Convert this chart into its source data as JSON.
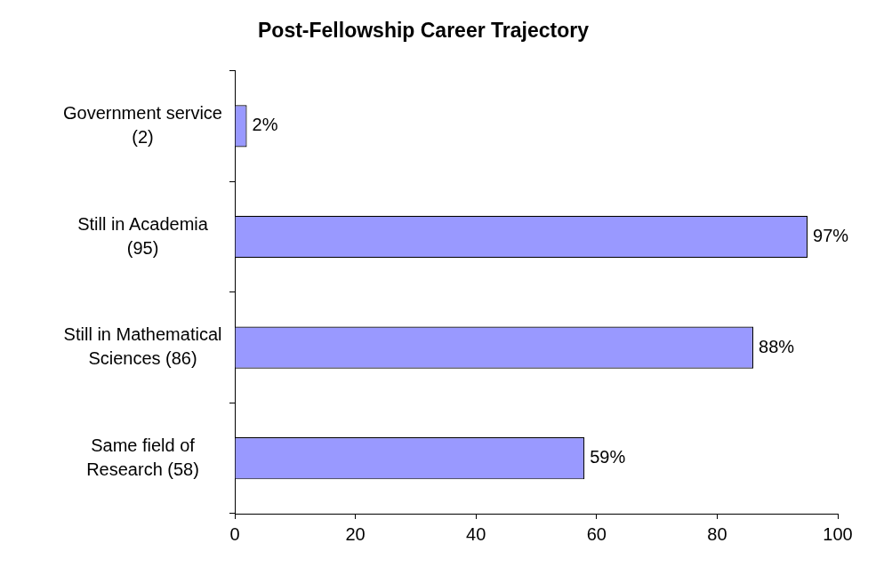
{
  "chart_data": {
    "type": "bar",
    "orientation": "horizontal",
    "title": "Post-Fellowship Career Trajectory",
    "categories": [
      "Government service\n(2)",
      "Still in Academia\n(95)",
      "Still in Mathematical\nSciences (86)",
      "Same field of\nResearch (58)"
    ],
    "values": [
      2,
      95,
      86,
      58
    ],
    "color": "#9999ff",
    "annotations": [
      {
        "text": "2%",
        "x": 2,
        "y": "Government service\n(2)"
      },
      {
        "text": "97%",
        "x": 95,
        "y": "Still in Academia\n(95)"
      },
      {
        "text": "88%",
        "x": 86,
        "y": "Still in Mathematical\nSciences (86)"
      },
      {
        "text": "59%",
        "x": 58,
        "y": "Same field of\nResearch (58)"
      }
    ],
    "xlim": [
      0,
      100
    ],
    "xticks": [
      0,
      20,
      40,
      60,
      80,
      100
    ],
    "grid": false,
    "legend": false
  }
}
